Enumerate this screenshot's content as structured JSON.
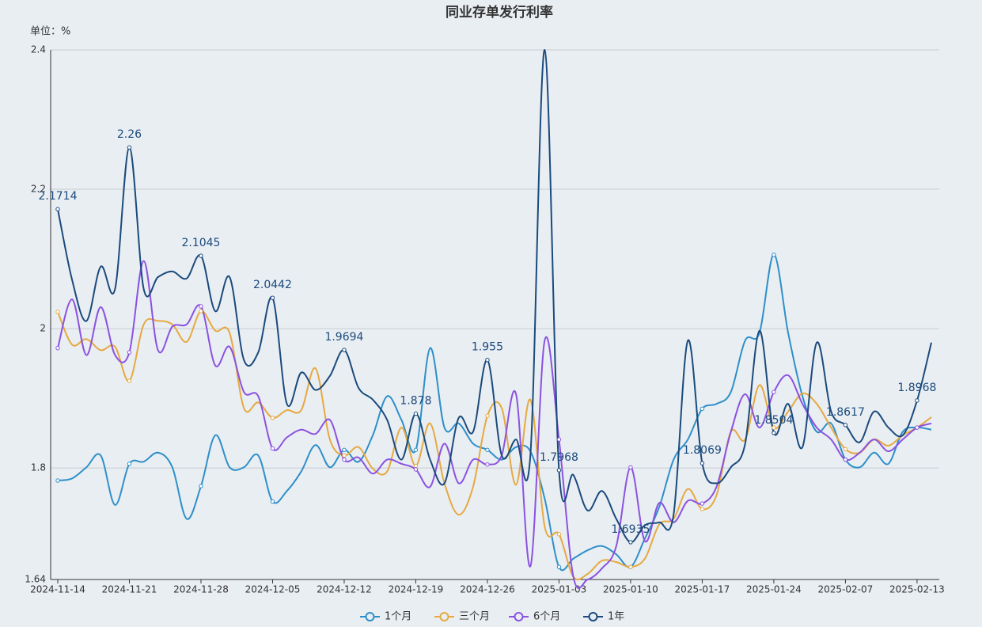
{
  "chart_data": {
    "type": "line",
    "title": "同业存单发行利率",
    "unit_label": "单位：%",
    "categories": [
      "2024-11-14",
      null,
      null,
      null,
      null,
      "2024-11-21",
      null,
      null,
      null,
      null,
      "2024-11-28",
      null,
      null,
      null,
      null,
      "2024-12-05",
      null,
      null,
      null,
      null,
      "2024-12-12",
      null,
      null,
      null,
      null,
      "2024-12-19",
      null,
      null,
      null,
      null,
      "2024-12-26",
      null,
      null,
      null,
      null,
      "2025-01-03",
      null,
      null,
      null,
      null,
      "2025-01-10",
      null,
      null,
      null,
      null,
      "2025-01-17",
      null,
      null,
      null,
      null,
      "2025-01-24",
      null,
      null,
      null,
      null,
      "2025-02-07",
      null,
      null,
      null,
      null,
      "2025-02-13",
      null
    ],
    "series": [
      {
        "name": "1个月",
        "color": "#2e8fc8",
        "values": [
          1.782,
          1.785,
          1.801,
          1.818,
          1.747,
          1.806,
          1.809,
          1.822,
          1.801,
          1.727,
          1.774,
          1.847,
          1.801,
          1.801,
          1.818,
          1.752,
          1.767,
          1.795,
          1.833,
          1.801,
          1.826,
          1.809,
          1.847,
          1.903,
          1.869,
          1.826,
          1.972,
          1.858,
          1.864,
          1.835,
          1.826,
          1.812,
          1.83,
          1.824,
          1.756,
          1.658,
          1.67,
          1.682,
          1.688,
          1.676,
          1.658,
          1.699,
          1.744,
          1.812,
          1.841,
          1.885,
          1.892,
          1.909,
          1.983,
          1.994,
          2.106,
          1.994,
          1.903,
          1.852,
          1.864,
          1.812,
          1.801,
          1.822,
          1.806,
          1.852,
          1.858,
          1.855
        ]
      },
      {
        "name": "三个月",
        "color": "#e6a940",
        "values": [
          2.024,
          1.977,
          1.985,
          1.969,
          1.974,
          1.925,
          2.006,
          2.011,
          2.006,
          1.981,
          2.025,
          1.997,
          1.994,
          1.886,
          1.894,
          1.872,
          1.883,
          1.883,
          1.943,
          1.841,
          1.818,
          1.83,
          1.799,
          1.795,
          1.858,
          1.803,
          1.864,
          1.778,
          1.733,
          1.773,
          1.875,
          1.886,
          1.776,
          1.898,
          1.716,
          1.705,
          1.644,
          1.648,
          1.667,
          1.665,
          1.658,
          1.67,
          1.719,
          1.727,
          1.77,
          1.741,
          1.761,
          1.852,
          1.841,
          1.919,
          1.858,
          1.881,
          1.907,
          1.892,
          1.858,
          1.827,
          1.822,
          1.841,
          1.832,
          1.847,
          1.858,
          1.873
        ]
      },
      {
        "name": "6个月",
        "color": "#8b52e0",
        "values": [
          1.972,
          2.042,
          1.962,
          2.031,
          1.962,
          1.966,
          2.097,
          1.969,
          2.003,
          2.006,
          2.032,
          1.947,
          1.974,
          1.909,
          1.903,
          1.828,
          1.844,
          1.855,
          1.849,
          1.869,
          1.812,
          1.815,
          1.792,
          1.812,
          1.806,
          1.798,
          1.773,
          1.835,
          1.778,
          1.812,
          1.805,
          1.818,
          1.906,
          1.659,
          1.983,
          1.841,
          1.644,
          1.64,
          1.656,
          1.688,
          1.801,
          1.695,
          1.75,
          1.722,
          1.753,
          1.749,
          1.773,
          1.852,
          1.906,
          1.858,
          1.909,
          1.933,
          1.892,
          1.858,
          1.841,
          1.812,
          1.822,
          1.841,
          1.824,
          1.841,
          1.858,
          1.864
        ]
      },
      {
        "name": "1年",
        "color": "#1b4a7c",
        "values": [
          2.1714,
          2.07,
          2.011,
          2.089,
          2.057,
          2.26,
          2.057,
          2.074,
          2.082,
          2.072,
          2.1045,
          2.025,
          2.074,
          1.955,
          1.966,
          2.0442,
          1.892,
          1.937,
          1.912,
          1.932,
          1.9694,
          1.915,
          1.898,
          1.869,
          1.812,
          1.878,
          1.812,
          1.778,
          1.872,
          1.852,
          1.955,
          1.818,
          1.841,
          1.818,
          2.4,
          1.7968,
          1.79,
          1.739,
          1.767,
          1.727,
          1.6935,
          1.718,
          1.722,
          1.733,
          1.983,
          1.8069,
          1.778,
          1.801,
          1.835,
          1.997,
          1.8504,
          1.892,
          1.83,
          1.98,
          1.881,
          1.8617,
          1.837,
          1.881,
          1.858,
          1.847,
          1.8968,
          1.98
        ],
        "labels": true
      }
    ],
    "ylim": [
      1.64,
      2.4
    ],
    "yticks": [
      1.64,
      1.8,
      2,
      2.2,
      2.4
    ],
    "grid": true,
    "smooth": true,
    "legend": "bottom"
  }
}
